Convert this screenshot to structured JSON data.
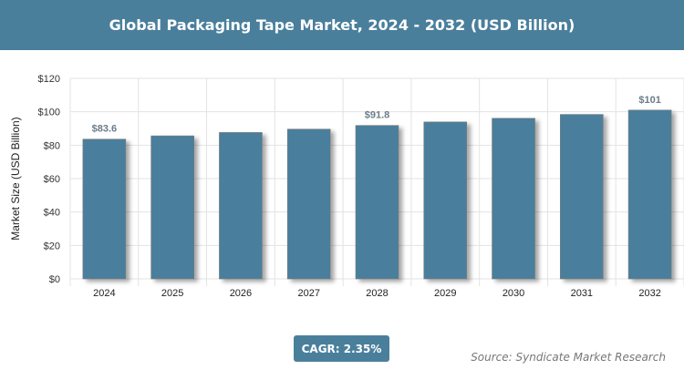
{
  "header": {
    "title": "Global Packaging Tape Market, 2024 - 2032 (USD Billion)"
  },
  "chart_data": {
    "type": "bar",
    "title": "Global Packaging Tape Market, 2024 - 2032 (USD Billion)",
    "categories": [
      "2024",
      "2025",
      "2026",
      "2027",
      "2028",
      "2029",
      "2030",
      "2031",
      "2032"
    ],
    "values": [
      83.6,
      85.6,
      87.6,
      89.6,
      91.8,
      93.9,
      96.1,
      98.4,
      101
    ],
    "data_labels": {
      "0": "$83.6",
      "4": "$91.8",
      "8": "$101"
    },
    "xlabel": "",
    "ylabel": "Market Size (USD Billion)",
    "ylim": [
      0,
      120
    ],
    "yticks": [
      0,
      20,
      40,
      60,
      80,
      100,
      120
    ],
    "ytick_labels": [
      "$0",
      "$20",
      "$40",
      "$60",
      "$80",
      "$100",
      "$120"
    ],
    "grid": true,
    "bar_color": "#4a7f9c"
  },
  "cagr": "CAGR: 2.35%",
  "source": "Source: Syndicate Market Research"
}
